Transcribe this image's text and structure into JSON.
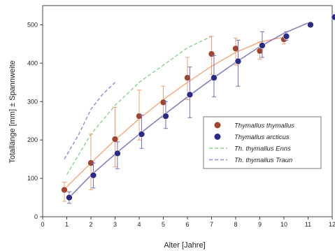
{
  "chart_data": {
    "type": "scatter",
    "xlabel": "Alter [Jahre]",
    "ylabel": "Totallänge [mm] ± Spannweite",
    "xlim": [
      0,
      12
    ],
    "ylim": [
      0,
      550
    ],
    "xticks": [
      "0",
      "1",
      "2",
      "3",
      "4",
      "5",
      "6",
      "7",
      "8",
      "9",
      "10",
      "11",
      "12"
    ],
    "yticks": [
      "0",
      "100",
      "200",
      "300",
      "400",
      "500"
    ],
    "grid": false,
    "legend_position": "right",
    "series": [
      {
        "name": "Thymallus thymallus",
        "kind": "points",
        "color": "#a0442a",
        "errcolor": "#f0a070",
        "x": [
          0.9,
          2.0,
          3.0,
          4.0,
          5.0,
          6.0,
          7.0,
          8.0,
          9.0,
          10.0
        ],
        "y": [
          70,
          140,
          202,
          262,
          298,
          362,
          424,
          438,
          432,
          462
        ],
        "ylow": [
          40,
          70,
          130,
          200,
          258,
          305,
          370,
          395,
          410,
          450
        ],
        "yhigh": [
          90,
          215,
          285,
          330,
          340,
          415,
          470,
          465,
          455,
          475
        ]
      },
      {
        "name": "Thymallus arcticus",
        "kind": "points",
        "color": "#2b2b86",
        "errcolor": "#7070c0",
        "x": [
          1.1,
          2.1,
          3.1,
          4.1,
          5.1,
          6.1,
          7.1,
          8.1,
          9.1,
          10.1,
          11.1,
          12.1
        ],
        "y": [
          50,
          108,
          165,
          215,
          262,
          318,
          362,
          405,
          446,
          470,
          500,
          520
        ],
        "ylow": [
          35,
          75,
          125,
          178,
          230,
          258,
          312,
          340,
          415,
          460,
          null,
          null
        ],
        "yhigh": [
          65,
          140,
          195,
          265,
          300,
          390,
          420,
          460,
          482,
          482,
          null,
          null
        ]
      },
      {
        "name": "Th. thymallus Enns",
        "kind": "dashed",
        "color": "#8fd08f",
        "x": [
          1,
          2,
          3,
          4,
          5,
          6,
          7
        ],
        "y": [
          110,
          215,
          290,
          350,
          395,
          440,
          470
        ]
      },
      {
        "name": "Th. thymallus Traun",
        "kind": "dashed",
        "color": "#8c8cd8",
        "x": [
          0.9,
          1.5,
          2.0,
          2.5,
          3.0
        ],
        "y": [
          150,
          215,
          280,
          320,
          350
        ]
      }
    ],
    "trendlines": [
      {
        "color": "#f4b088",
        "x": [
          0.9,
          2,
          3,
          4,
          5,
          6,
          7,
          8,
          9,
          10
        ],
        "y": [
          72,
          140,
          200,
          255,
          305,
          350,
          392,
          428,
          455,
          468
        ]
      },
      {
        "color": "#8080c4",
        "x": [
          1.1,
          2,
          3,
          4,
          5,
          6,
          7,
          8,
          9,
          10,
          11
        ],
        "y": [
          50,
          108,
          163,
          215,
          264,
          312,
          358,
          402,
          443,
          478,
          505
        ]
      }
    ]
  }
}
